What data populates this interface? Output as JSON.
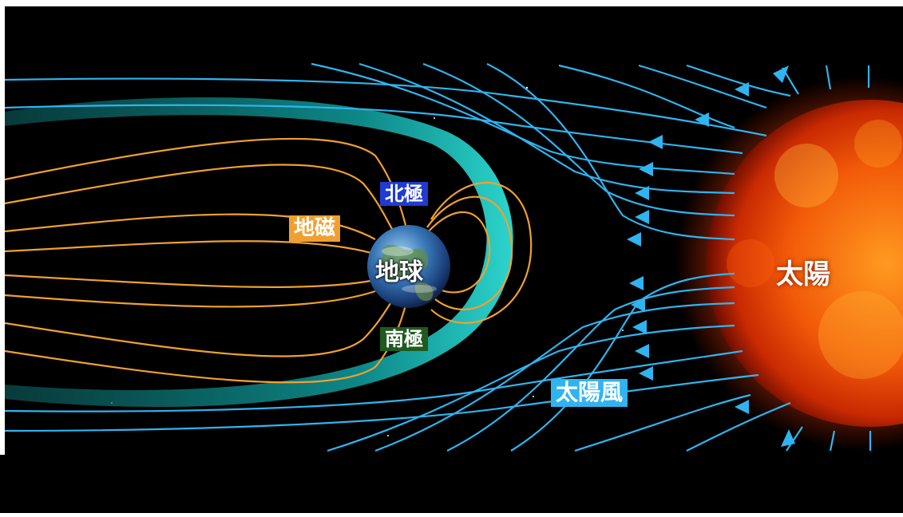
{
  "labels": {
    "north_pole": "北極",
    "south_pole": "南極",
    "geomagnetism": "地磁",
    "earth": "地球",
    "sun": "太陽",
    "solar_wind": "太陽風"
  },
  "colors": {
    "background": "#000000",
    "frame": "#ffffff",
    "solar_wind_lines": "#2fb4f0",
    "field_lines": "#f0a030",
    "magnetosphere": "#1ad6d0",
    "north_pole_box": "#1f3bd0",
    "south_pole_box": "#1f5a1f",
    "geomagnetism_box": "#f0a030",
    "solar_wind_box": "#2fb4f0",
    "sun_core": "#ff7a10"
  }
}
